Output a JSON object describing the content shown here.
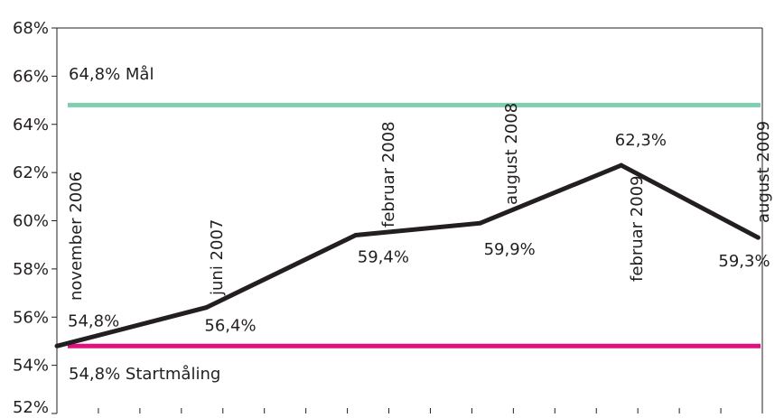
{
  "chart_data": {
    "type": "line",
    "ylim": [
      52,
      68
    ],
    "y_ticks": [
      52,
      54,
      56,
      58,
      60,
      62,
      64,
      66,
      68
    ],
    "y_tick_labels": [
      "52%",
      "54%",
      "56%",
      "58%",
      "60%",
      "62%",
      "64%",
      "66%",
      "68%"
    ],
    "x_range": [
      0,
      17
    ],
    "x_tick_count": 17,
    "grid": false,
    "series": [
      {
        "color": "#231f20",
        "points": [
          {
            "x": 0,
            "y": 54.8,
            "date": "november 2006",
            "label": "54,8%"
          },
          {
            "x": 3.6,
            "y": 56.4,
            "date": "juni 2007",
            "label": "56,4%"
          },
          {
            "x": 7.2,
            "y": 59.4,
            "date": "februar 2008",
            "label": "59,4%"
          },
          {
            "x": 10.2,
            "y": 59.9,
            "date": "august 2008",
            "label": "59,9%"
          },
          {
            "x": 13.6,
            "y": 62.3,
            "date": "februar 2009",
            "label": "62,3%"
          },
          {
            "x": 16.9,
            "y": 59.3,
            "date": "august 2009",
            "label": "59,3%"
          }
        ]
      }
    ],
    "reference_lines": [
      {
        "name": "goal",
        "y": 64.8,
        "label": "64,8% Mål",
        "color": "#7ecfb0"
      },
      {
        "name": "baseline",
        "y": 54.8,
        "label": "54,8% Startmåling",
        "color": "#e0107f"
      }
    ]
  }
}
